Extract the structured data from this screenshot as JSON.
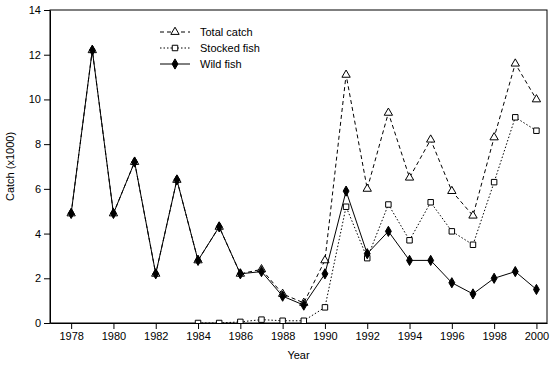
{
  "chart_data": {
    "type": "line",
    "x_label": "Year",
    "y_label": "Catch (x1000)",
    "x": [
      1978,
      1979,
      1980,
      1981,
      1982,
      1983,
      1984,
      1985,
      1986,
      1987,
      1988,
      1989,
      1990,
      1991,
      1992,
      1993,
      1994,
      1995,
      1996,
      1997,
      1998,
      1999,
      2000
    ],
    "series": [
      {
        "name": "Total catch",
        "color": "#000000",
        "marker": "triangle-open",
        "line_style": "dashed",
        "values": [
          4.9,
          12.2,
          4.9,
          7.2,
          2.2,
          6.4,
          2.8,
          4.3,
          2.2,
          2.4,
          1.3,
          0.9,
          2.8,
          11.1,
          6.0,
          9.4,
          6.5,
          8.2,
          5.9,
          4.8,
          8.3,
          11.6,
          10.0
        ]
      },
      {
        "name": "Stocked fish",
        "color": "#000000",
        "marker": "square-open",
        "line_style": "dotted",
        "values": [
          null,
          null,
          null,
          null,
          null,
          null,
          0.0,
          0.0,
          0.05,
          0.15,
          0.1,
          0.1,
          0.7,
          5.2,
          2.9,
          5.3,
          3.7,
          5.4,
          4.1,
          3.5,
          6.3,
          9.2,
          8.6
        ]
      },
      {
        "name": "Wild fish",
        "color": "#000000",
        "marker": "diamond",
        "line_style": "solid",
        "values": [
          4.9,
          12.2,
          4.9,
          7.2,
          2.2,
          6.4,
          2.8,
          4.3,
          2.2,
          2.3,
          1.2,
          0.8,
          2.2,
          5.9,
          3.1,
          4.1,
          2.8,
          2.8,
          1.8,
          1.3,
          2.0,
          2.3,
          1.5
        ]
      }
    ],
    "xlim": [
      1977,
      2000.5
    ],
    "xticks": [
      1978,
      1980,
      1982,
      1984,
      1986,
      1988,
      1990,
      1992,
      1994,
      1996,
      1998,
      2000
    ],
    "ylim": [
      0,
      14
    ],
    "yticks": [
      0,
      2,
      4,
      6,
      8,
      10,
      12,
      14
    ],
    "grid": false,
    "legend": "upper left"
  }
}
